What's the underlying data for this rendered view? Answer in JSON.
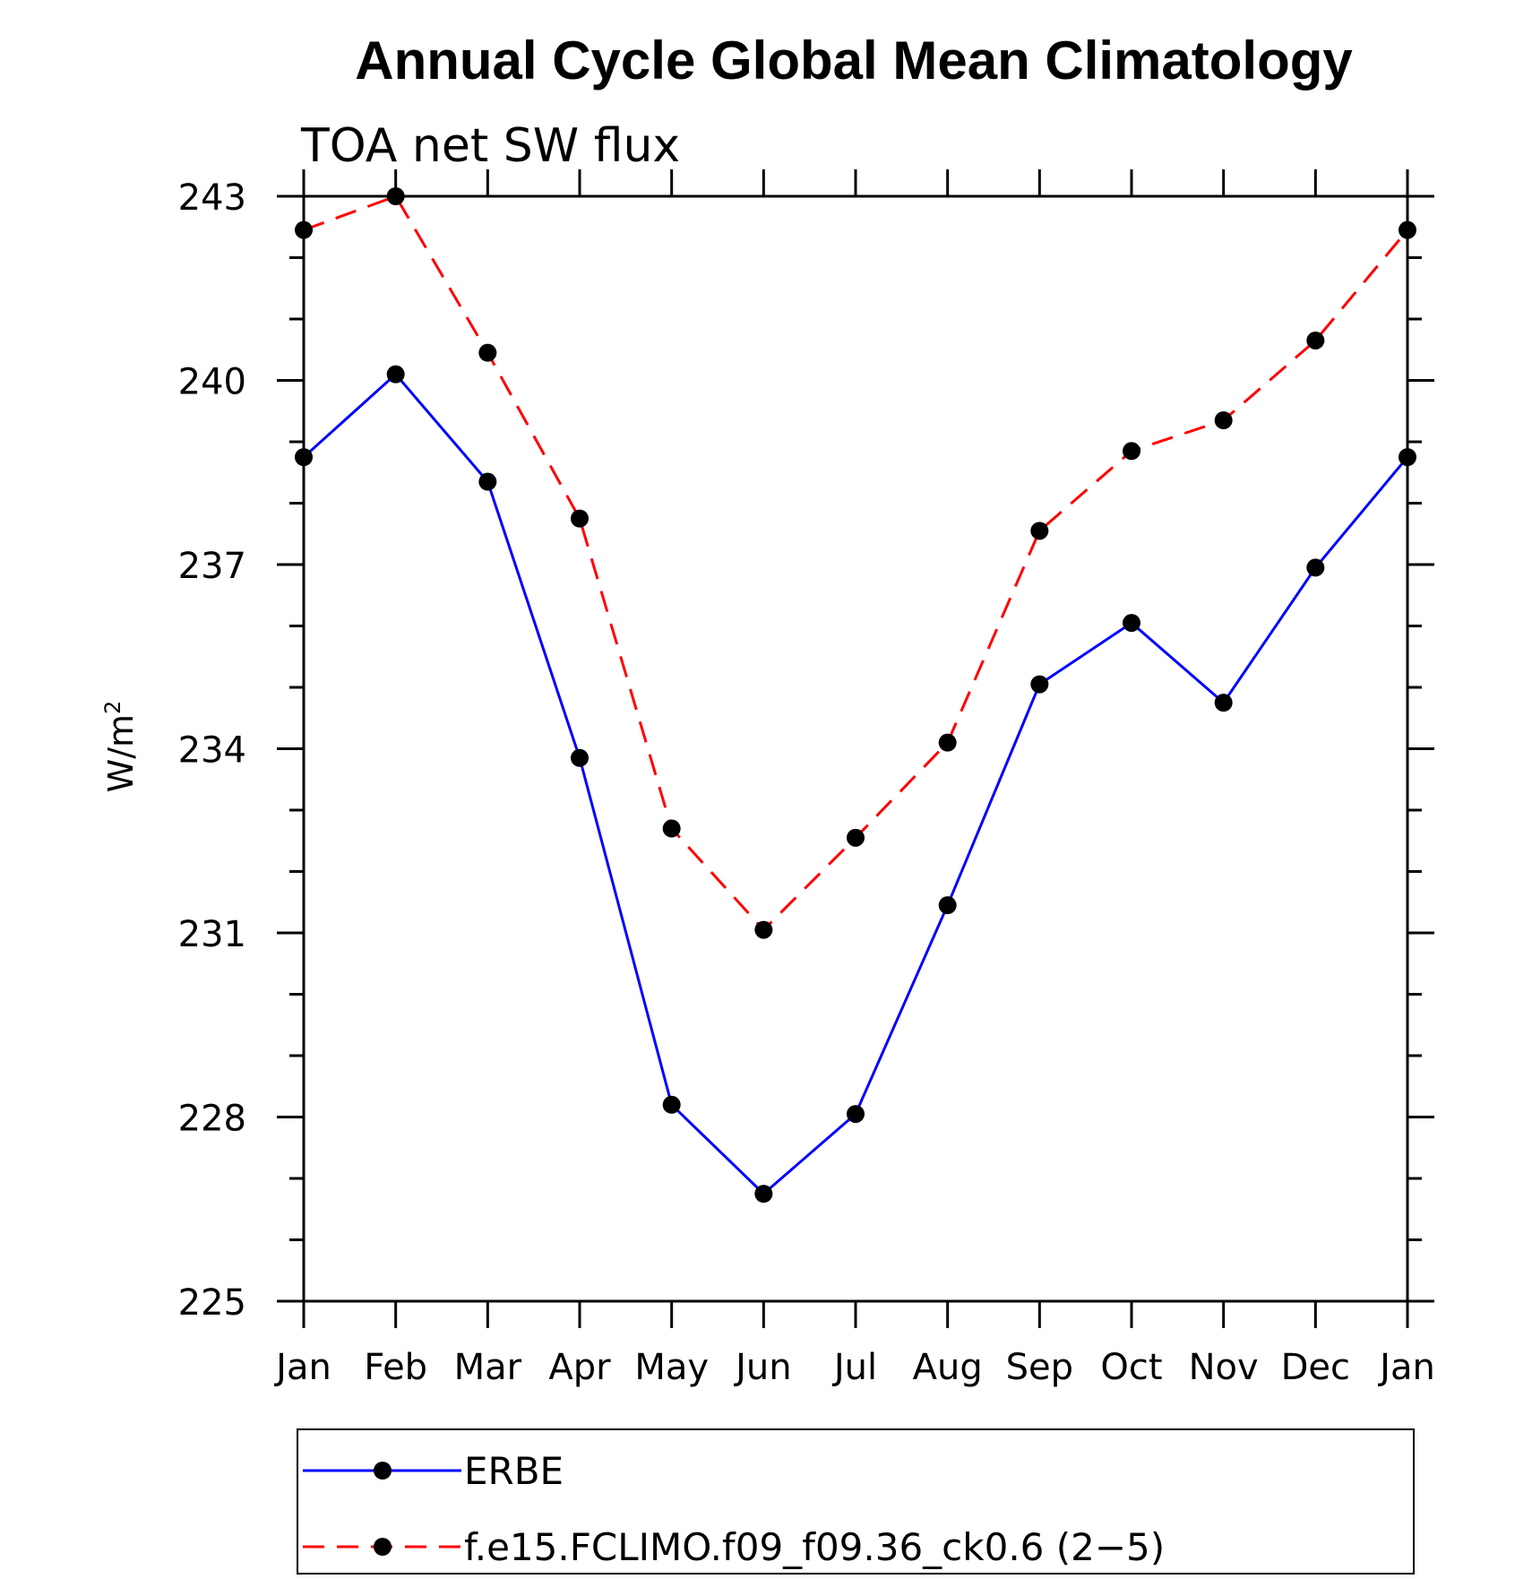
{
  "chart_data": {
    "type": "line",
    "title": "Annual Cycle Global Mean Climatology",
    "subtitle": "TOA net SW flux",
    "ylabel": "W/m",
    "ylabel_sup": "2",
    "xlabel": "",
    "categories": [
      "Jan",
      "Feb",
      "Mar",
      "Apr",
      "May",
      "Jun",
      "Jul",
      "Aug",
      "Sep",
      "Oct",
      "Nov",
      "Dec",
      "Jan"
    ],
    "ylim": [
      225,
      243
    ],
    "yticks": [
      "225",
      "228",
      "231",
      "234",
      "237",
      "240",
      "243"
    ],
    "grid": false,
    "legend_position": "bottom",
    "series": [
      {
        "name": "ERBE",
        "color": "#0000ff",
        "dash": "solid",
        "marker": "circle",
        "values": [
          238.75,
          240.1,
          238.35,
          233.85,
          228.2,
          226.75,
          228.05,
          231.45,
          235.05,
          236.05,
          234.75,
          236.95,
          238.75
        ]
      },
      {
        "name": "f.e15.FCLIMO.f09_f09.36_ck0.6 (2−5)",
        "color": "#ff0000",
        "dash": "dashed",
        "marker": "circle",
        "values": [
          242.45,
          243.0,
          240.45,
          237.75,
          232.7,
          231.05,
          232.55,
          234.1,
          237.55,
          238.85,
          239.35,
          240.65,
          242.45
        ]
      }
    ]
  }
}
